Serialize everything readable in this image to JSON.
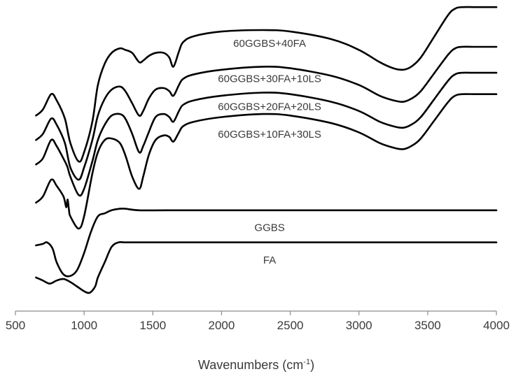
{
  "chart_data": {
    "type": "line",
    "xlabel_main": "Wavenumbers (cm",
    "xlabel_sup": "-1",
    "xlabel_close": ")",
    "xlim": [
      500,
      4000
    ],
    "x_ticks": [
      "500",
      "1000",
      "1500",
      "2000",
      "2500",
      "3000",
      "3500",
      "4000"
    ],
    "y_axis_visible": false,
    "grid": false,
    "colors": {
      "line": "#000000",
      "axis": "#8c8c8c",
      "text": "#3a3a3a"
    },
    "series": [
      {
        "name": "60GGBS+40FA",
        "x": [
          650,
          700,
          760,
          800,
          860,
          900,
          960,
          1000,
          1060,
          1100,
          1150,
          1200,
          1260,
          1300,
          1350,
          1400,
          1430,
          1470,
          1520,
          1580,
          1620,
          1650,
          1690,
          1720,
          1800,
          2000,
          2300,
          2500,
          2800,
          3000,
          3150,
          3250,
          3320,
          3380,
          3450,
          3550,
          3650,
          3700,
          3750,
          3850,
          4000
        ],
        "y": [
          0.64,
          0.66,
          0.71,
          0.69,
          0.63,
          0.55,
          0.49,
          0.52,
          0.62,
          0.74,
          0.81,
          0.845,
          0.86,
          0.855,
          0.845,
          0.815,
          0.82,
          0.835,
          0.845,
          0.845,
          0.83,
          0.8,
          0.85,
          0.88,
          0.9,
          0.915,
          0.92,
          0.915,
          0.89,
          0.855,
          0.815,
          0.795,
          0.79,
          0.8,
          0.83,
          0.9,
          0.97,
          0.99,
          0.995,
          0.995,
          0.995
        ]
      },
      {
        "name": "60GGBS+30FA+10LS",
        "x": [
          650,
          700,
          760,
          800,
          860,
          900,
          960,
          1000,
          1060,
          1100,
          1150,
          1200,
          1260,
          1300,
          1350,
          1400,
          1430,
          1470,
          1520,
          1580,
          1620,
          1650,
          1690,
          1720,
          1800,
          2000,
          2300,
          2500,
          2800,
          3000,
          3150,
          3250,
          3320,
          3380,
          3450,
          3550,
          3650,
          3700,
          3750,
          3850,
          4000
        ],
        "y": [
          0.56,
          0.58,
          0.63,
          0.61,
          0.55,
          0.47,
          0.43,
          0.47,
          0.56,
          0.64,
          0.695,
          0.725,
          0.735,
          0.72,
          0.68,
          0.64,
          0.655,
          0.695,
          0.725,
          0.73,
          0.72,
          0.705,
          0.74,
          0.76,
          0.775,
          0.79,
          0.8,
          0.795,
          0.77,
          0.74,
          0.705,
          0.69,
          0.685,
          0.695,
          0.72,
          0.78,
          0.84,
          0.86,
          0.865,
          0.865,
          0.865
        ]
      },
      {
        "name": "60GGBS+20FA+20LS",
        "x": [
          650,
          700,
          760,
          800,
          860,
          880,
          900,
          960,
          1000,
          1060,
          1100,
          1150,
          1200,
          1260,
          1300,
          1350,
          1400,
          1430,
          1470,
          1520,
          1580,
          1620,
          1650,
          1690,
          1720,
          1800,
          2000,
          2300,
          2500,
          2800,
          3000,
          3150,
          3250,
          3320,
          3380,
          3450,
          3550,
          3650,
          3700,
          3750,
          3850,
          4000
        ],
        "y": [
          0.48,
          0.5,
          0.56,
          0.54,
          0.49,
          0.47,
          0.44,
          0.38,
          0.4,
          0.49,
          0.56,
          0.61,
          0.64,
          0.645,
          0.63,
          0.58,
          0.52,
          0.54,
          0.585,
          0.635,
          0.645,
          0.635,
          0.62,
          0.655,
          0.675,
          0.69,
          0.705,
          0.715,
          0.71,
          0.685,
          0.655,
          0.62,
          0.605,
          0.6,
          0.61,
          0.635,
          0.695,
          0.755,
          0.775,
          0.78,
          0.78,
          0.78
        ]
      },
      {
        "name": "60GGBS+10FA+30LS",
        "x": [
          650,
          700,
          760,
          800,
          850,
          870,
          880,
          890,
          900,
          960,
          1000,
          1060,
          1100,
          1150,
          1200,
          1260,
          1300,
          1350,
          1400,
          1430,
          1470,
          1520,
          1580,
          1620,
          1650,
          1690,
          1720,
          1800,
          2000,
          2300,
          2500,
          2800,
          3000,
          3150,
          3250,
          3320,
          3380,
          3450,
          3550,
          3650,
          3700,
          3750,
          3850,
          4000
        ],
        "y": [
          0.355,
          0.375,
          0.43,
          0.41,
          0.375,
          0.34,
          0.365,
          0.33,
          0.31,
          0.27,
          0.31,
          0.45,
          0.52,
          0.56,
          0.565,
          0.55,
          0.51,
          0.44,
          0.4,
          0.44,
          0.51,
          0.56,
          0.575,
          0.57,
          0.555,
          0.585,
          0.605,
          0.62,
          0.635,
          0.645,
          0.64,
          0.615,
          0.585,
          0.55,
          0.535,
          0.53,
          0.54,
          0.565,
          0.625,
          0.685,
          0.705,
          0.71,
          0.71,
          0.71
        ]
      },
      {
        "name": "GGBS",
        "x": [
          650,
          700,
          730,
          770,
          800,
          850,
          900,
          950,
          1000,
          1050,
          1100,
          1150,
          1200,
          1260,
          1300,
          1400,
          1600,
          2000,
          2500,
          3000,
          3500,
          4000
        ],
        "y": [
          0.215,
          0.22,
          0.225,
          0.205,
          0.16,
          0.12,
          0.115,
          0.135,
          0.19,
          0.26,
          0.31,
          0.32,
          0.33,
          0.335,
          0.335,
          0.33,
          0.33,
          0.33,
          0.33,
          0.33,
          0.33,
          0.33
        ]
      },
      {
        "name": "FA",
        "x": [
          650,
          700,
          750,
          800,
          850,
          900,
          950,
          1000,
          1040,
          1080,
          1100,
          1150,
          1200,
          1250,
          1300,
          1400,
          1600,
          2000,
          2500,
          3000,
          3500,
          4000
        ],
        "y": [
          0.11,
          0.1,
          0.09,
          0.1,
          0.105,
          0.095,
          0.08,
          0.065,
          0.06,
          0.08,
          0.11,
          0.16,
          0.21,
          0.225,
          0.225,
          0.225,
          0.225,
          0.225,
          0.225,
          0.225,
          0.225,
          0.225
        ]
      }
    ]
  }
}
